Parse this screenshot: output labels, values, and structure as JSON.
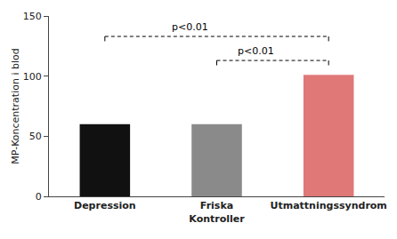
{
  "chart_data": {
    "type": "bar",
    "categories": [
      "Depression",
      "Friska\nKontroller",
      "Utmattningssyndrom"
    ],
    "values": [
      60,
      60,
      101
    ],
    "colors": [
      "#111111",
      "#8a8a8a",
      "#e07878"
    ],
    "ylabel": "MP-Koncentration i blod",
    "ylim": [
      0,
      150
    ],
    "yticks": [
      0,
      50,
      100,
      150
    ],
    "grid": false,
    "annotations": [
      {
        "text": "p<0.01",
        "from": "Depression",
        "to": "Utmattningssyndrom",
        "y": 133
      },
      {
        "text": "p<0.01",
        "from": "Friska\nKontroller",
        "to": "Utmattningssyndrom",
        "y": 113
      }
    ]
  }
}
